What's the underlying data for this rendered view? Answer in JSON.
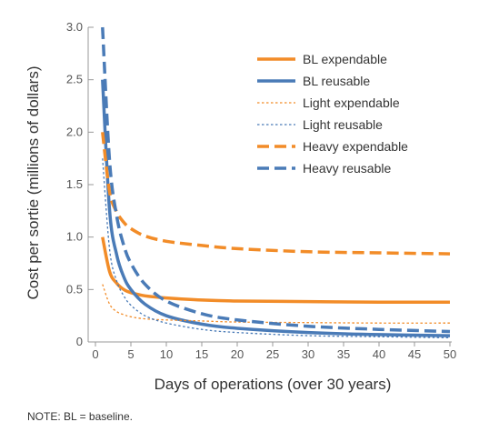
{
  "chart_data": {
    "type": "line",
    "xlabel": "Days of operations (over 30 years)",
    "ylabel": "Cost per sortie (millions of dollars)",
    "xlim": [
      0,
      50
    ],
    "ylim": [
      0,
      3.0
    ],
    "xticks": [
      0,
      5,
      10,
      15,
      20,
      25,
      30,
      35,
      40,
      45,
      50
    ],
    "yticks": [
      "0",
      "0.5",
      "1.0",
      "1.5",
      "2.0",
      "2.5",
      "3.0"
    ],
    "legend_position": "top-right",
    "grid": false,
    "series": [
      {
        "name": "BL expendable",
        "color": "#F28C28",
        "style": "solid-thick",
        "x": [
          1,
          2,
          3,
          4,
          5,
          7,
          10,
          15,
          20,
          30,
          40,
          50
        ],
        "y": [
          1.0,
          0.67,
          0.56,
          0.5,
          0.47,
          0.44,
          0.42,
          0.4,
          0.39,
          0.385,
          0.38,
          0.38
        ]
      },
      {
        "name": "BL reusable",
        "color": "#4A7BB7",
        "style": "solid-thick",
        "x": [
          1,
          2,
          3,
          4,
          5,
          7,
          10,
          15,
          20,
          30,
          40,
          50
        ],
        "y": [
          2.5,
          1.25,
          0.83,
          0.62,
          0.5,
          0.36,
          0.25,
          0.17,
          0.13,
          0.09,
          0.07,
          0.06
        ]
      },
      {
        "name": "Light expendable",
        "color": "#F28C28",
        "style": "dotted-thin",
        "x": [
          1,
          2,
          3,
          4,
          5,
          7,
          10,
          15,
          20,
          30,
          40,
          50
        ],
        "y": [
          0.55,
          0.36,
          0.29,
          0.26,
          0.24,
          0.22,
          0.21,
          0.2,
          0.19,
          0.185,
          0.18,
          0.18
        ]
      },
      {
        "name": "Light reusable",
        "color": "#4A7BB7",
        "style": "dotted-thin",
        "x": [
          1,
          2,
          3,
          4,
          5,
          7,
          10,
          15,
          20,
          30,
          40,
          50
        ],
        "y": [
          1.75,
          0.88,
          0.58,
          0.44,
          0.35,
          0.25,
          0.18,
          0.12,
          0.09,
          0.06,
          0.05,
          0.04
        ]
      },
      {
        "name": "Heavy expendable",
        "color": "#F28C28",
        "style": "dashed-thick",
        "x": [
          1,
          2,
          3,
          4,
          5,
          7,
          10,
          15,
          20,
          30,
          40,
          50
        ],
        "y": [
          2.0,
          1.43,
          1.24,
          1.14,
          1.08,
          1.01,
          0.96,
          0.92,
          0.89,
          0.86,
          0.85,
          0.84
        ]
      },
      {
        "name": "Heavy reusable",
        "color": "#4A7BB7",
        "style": "dashed-thick",
        "x": [
          1,
          2,
          3,
          4,
          5,
          7,
          10,
          15,
          20,
          30,
          40,
          50
        ],
        "y": [
          3.0,
          1.72,
          1.2,
          0.92,
          0.75,
          0.55,
          0.39,
          0.27,
          0.21,
          0.15,
          0.12,
          0.1
        ]
      }
    ]
  },
  "note": "NOTE: BL = baseline."
}
